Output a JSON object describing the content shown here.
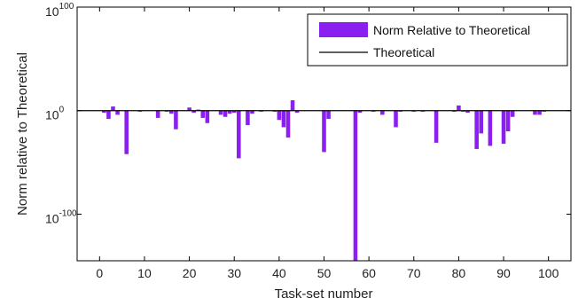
{
  "chart_data": {
    "type": "bar",
    "xlabel": "Task-set number",
    "ylabel": "Norm relative to Theoretical",
    "xlim": [
      -5,
      105
    ],
    "ylim_log10": [
      -145,
      100
    ],
    "y_scale": "log",
    "x_ticks": [
      0,
      10,
      20,
      30,
      40,
      50,
      60,
      70,
      80,
      90,
      100
    ],
    "y_ticks": [
      {
        "exponent": 100,
        "base": "10",
        "exp_text": "100"
      },
      {
        "exponent": 0,
        "base": "10",
        "exp_text": "0"
      },
      {
        "exponent": -100,
        "base": "10",
        "exp_text": "-100"
      }
    ],
    "legend": {
      "position": "top-right",
      "entries": [
        {
          "label": "Norm Relative to Theoretical",
          "kind": "bar"
        },
        {
          "label": "Theoretical",
          "kind": "line"
        }
      ]
    },
    "reference_line": {
      "name": "Theoretical",
      "log10_value": 0,
      "color": "#000000"
    },
    "series": [
      {
        "name": "Norm Relative to Theoretical",
        "color": "#8a1ff0",
        "values_log10": [
          0,
          -2,
          -8,
          4,
          -4,
          0,
          -42,
          0,
          0,
          -1,
          0,
          0,
          0,
          -7,
          0,
          -1,
          -3,
          -18,
          0,
          0,
          3,
          -2,
          1,
          -7,
          -12,
          0,
          0,
          -4,
          -6,
          -3,
          -2,
          -46,
          0,
          -14,
          -3,
          0,
          -1,
          0,
          0,
          -1,
          -9,
          -16,
          -26,
          10,
          -2,
          0,
          0,
          0,
          0,
          0,
          -40,
          -8,
          0,
          0,
          0,
          0,
          0,
          -155,
          -2,
          0,
          0,
          -1,
          0,
          -4,
          0,
          0,
          -16,
          -1,
          0,
          0,
          -1,
          0,
          -1,
          0,
          0,
          -31,
          0,
          0,
          0,
          -1,
          5,
          -1,
          -2,
          0,
          -37,
          -22,
          0,
          -34,
          0,
          0,
          -32,
          -20,
          -6,
          0,
          0,
          0,
          0,
          -4,
          -4,
          -1,
          0
        ]
      }
    ]
  }
}
